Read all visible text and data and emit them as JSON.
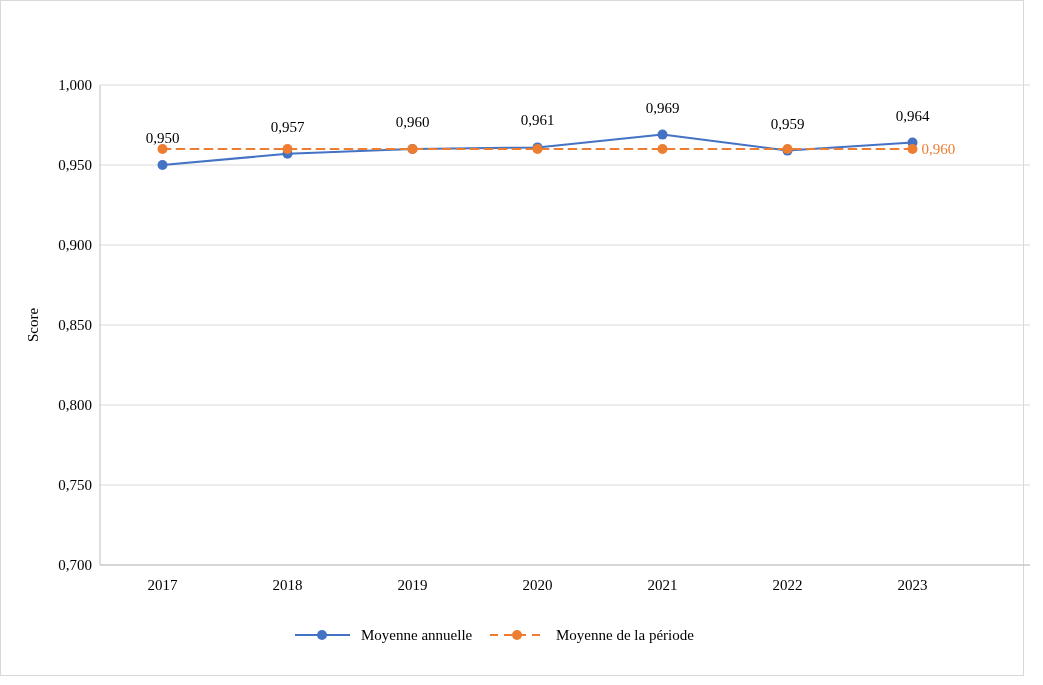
{
  "chart_data": {
    "type": "line",
    "ylabel": "Score",
    "categories": [
      "2017",
      "2018",
      "2019",
      "2020",
      "2021",
      "2022",
      "2023"
    ],
    "series": [
      {
        "name": "Moyenne annuelle",
        "color": "#4472c4",
        "values": [
          0.95,
          0.957,
          0.96,
          0.961,
          0.969,
          0.959,
          0.964
        ],
        "value_labels": [
          "0,950",
          "0,957",
          "0,960",
          "0,961",
          "0,969",
          "0,959",
          "0,964"
        ],
        "marker": "circle",
        "line_style": "solid"
      },
      {
        "name": "Moyenne de la période",
        "color": "#ed7d31",
        "values": [
          0.96,
          0.96,
          0.96,
          0.96,
          0.96,
          0.96,
          0.96
        ],
        "value_labels": [
          null,
          null,
          null,
          null,
          null,
          null,
          "0,960"
        ],
        "marker": "circle",
        "line_style": "dashed"
      }
    ],
    "ylim": [
      0.7,
      1.0
    ],
    "yticks": [
      {
        "value": 0.7,
        "label": "0,700"
      },
      {
        "value": 0.75,
        "label": "0,750"
      },
      {
        "value": 0.8,
        "label": "0,800"
      },
      {
        "value": 0.85,
        "label": "0,850"
      },
      {
        "value": 0.9,
        "label": "0,900"
      },
      {
        "value": 0.95,
        "label": "0,950"
      },
      {
        "value": 1.0,
        "label": "1,000"
      }
    ],
    "grid": "y",
    "legend": "bottom"
  }
}
